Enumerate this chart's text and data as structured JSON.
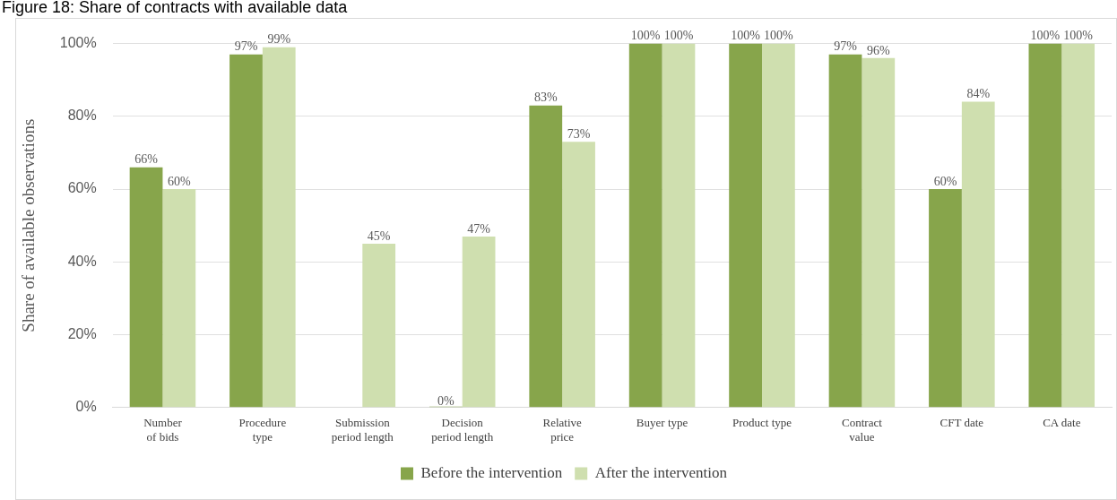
{
  "chart_data": {
    "type": "bar",
    "title": "Figure 18: Share of contracts with available data",
    "ylabel": "Share of available observations",
    "categories": [
      "Number of bids",
      "Procedure type",
      "Submission period length",
      "Decision period length",
      "Relative price",
      "Buyer type",
      "Product type",
      "Contract value",
      "CFT date",
      "CA date"
    ],
    "series": [
      {
        "name": "Before the intervention",
        "color": "#87a54b",
        "values": [
          66,
          97,
          null,
          0,
          83,
          100,
          100,
          97,
          60,
          100
        ],
        "value_labels": [
          "66%",
          "97%",
          null,
          "0%",
          "83%",
          "100%",
          "100%",
          "97%",
          "60%",
          "100%"
        ]
      },
      {
        "name": "After the intervention",
        "color": "#cfdfaf",
        "values": [
          60,
          99,
          45,
          47,
          73,
          100,
          100,
          96,
          84,
          100
        ],
        "value_labels": [
          "60%",
          "99%",
          "45%",
          "47%",
          "73%",
          "100%",
          "100%",
          "96%",
          "84%",
          "100%"
        ]
      }
    ],
    "ylim": [
      0,
      100
    ],
    "yticks": [
      {
        "value": 0,
        "label": "0%"
      },
      {
        "value": 20,
        "label": "20%"
      },
      {
        "value": 40,
        "label": "40%"
      },
      {
        "value": 60,
        "label": "60%"
      },
      {
        "value": 80,
        "label": "80%"
      },
      {
        "value": 100,
        "label": "100%"
      }
    ],
    "grid": "y",
    "legend": "bottom"
  }
}
